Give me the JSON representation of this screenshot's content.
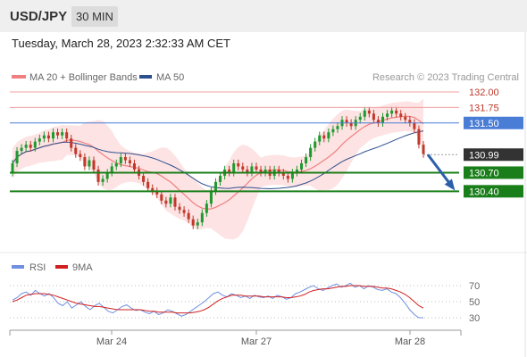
{
  "header": {
    "symbol": "USD/JPY",
    "timeframe": "30 MIN"
  },
  "timestamp": "Tuesday, March 28, 2023 2:32:33 AM CET",
  "colors": {
    "ma20": "#f08080",
    "ma50": "#2e4f8f",
    "band": "#fcdcdc",
    "bull": "#1f9a2f",
    "bear": "#c0392b",
    "support": "#1a7f1a",
    "resistance": "#f0a0a0",
    "pivot": "#4a7dd6",
    "last": "#333333",
    "rsi": "#6f8fe0",
    "rsi_ma": "#d02020",
    "arrow": "#2b5fa8"
  },
  "legend": {
    "ma20": "MA 20 + Bollinger Bands",
    "ma50": "MA 50",
    "rsi": "RSI",
    "rsi_ma": "9MA"
  },
  "watermark": "Research © 2023 Trading Central",
  "chart_data": [
    {
      "type": "candlestick",
      "title": "USD/JPY",
      "ylim": [
        129.6,
        132.1
      ],
      "x_labels": [
        "Mar 24",
        "Mar 27",
        "Mar 28"
      ],
      "levels": [
        {
          "label": "132.00",
          "value": 132.0,
          "kind": "resistance"
        },
        {
          "label": "131.75",
          "value": 131.75,
          "kind": "resistance"
        },
        {
          "label": "131.50",
          "value": 131.5,
          "kind": "pivot"
        },
        {
          "label": "130.99",
          "value": 130.99,
          "kind": "last"
        },
        {
          "label": "130.70",
          "value": 130.7,
          "kind": "support"
        },
        {
          "label": "130.40",
          "value": 130.4,
          "kind": "support"
        }
      ],
      "closes": [
        130.85,
        131.05,
        131.1,
        131.15,
        131.1,
        131.2,
        131.25,
        131.3,
        131.25,
        131.35,
        131.3,
        131.35,
        131.25,
        131.1,
        131.0,
        130.95,
        130.8,
        130.9,
        130.75,
        130.55,
        130.6,
        130.7,
        130.8,
        130.85,
        130.95,
        130.9,
        130.85,
        130.75,
        130.65,
        130.55,
        130.45,
        130.4,
        130.35,
        130.25,
        130.2,
        130.3,
        130.15,
        130.1,
        130.05,
        129.95,
        129.85,
        129.9,
        130.05,
        130.2,
        130.4,
        130.55,
        130.65,
        130.75,
        130.7,
        130.85,
        130.8,
        130.75,
        130.7,
        130.8,
        130.75,
        130.7,
        130.75,
        130.65,
        130.75,
        130.7,
        130.65,
        130.6,
        130.7,
        130.75,
        130.85,
        130.95,
        131.1,
        131.2,
        131.3,
        131.25,
        131.35,
        131.4,
        131.45,
        131.55,
        131.5,
        131.45,
        131.55,
        131.6,
        131.7,
        131.65,
        131.55,
        131.5,
        131.6,
        131.65,
        131.7,
        131.65,
        131.6,
        131.55,
        131.5,
        131.4,
        131.15,
        131.0
      ],
      "opens": [
        130.7,
        130.85,
        131.05,
        131.1,
        131.15,
        131.1,
        131.2,
        131.25,
        131.3,
        131.25,
        131.35,
        131.3,
        131.35,
        131.25,
        131.1,
        131.0,
        130.95,
        130.8,
        130.9,
        130.75,
        130.55,
        130.6,
        130.7,
        130.8,
        130.85,
        130.95,
        130.9,
        130.85,
        130.75,
        130.65,
        130.55,
        130.45,
        130.4,
        130.35,
        130.25,
        130.2,
        130.3,
        130.15,
        130.1,
        130.05,
        129.95,
        129.85,
        129.9,
        130.05,
        130.2,
        130.4,
        130.55,
        130.65,
        130.75,
        130.7,
        130.85,
        130.8,
        130.75,
        130.7,
        130.8,
        130.75,
        130.7,
        130.75,
        130.65,
        130.75,
        130.7,
        130.65,
        130.6,
        130.7,
        130.75,
        130.85,
        130.95,
        131.1,
        131.2,
        131.3,
        131.25,
        131.35,
        131.4,
        131.45,
        131.55,
        131.5,
        131.45,
        131.55,
        131.6,
        131.7,
        131.65,
        131.55,
        131.5,
        131.6,
        131.65,
        131.7,
        131.65,
        131.6,
        131.55,
        131.5,
        131.4,
        131.15
      ],
      "projection": {
        "from": 130.99,
        "to": 130.4
      },
      "series": [
        {
          "name": "MA 20 + Bollinger Bands"
        },
        {
          "name": "MA 50"
        }
      ]
    },
    {
      "type": "line",
      "title": "RSI",
      "ylim": [
        20,
        80
      ],
      "yticks": [
        "70",
        "50",
        "30"
      ],
      "series": [
        {
          "name": "RSI",
          "values": [
            52,
            55,
            60,
            62,
            58,
            64,
            60,
            57,
            60,
            55,
            48,
            45,
            50,
            42,
            46,
            50,
            44,
            40,
            45,
            48,
            43,
            38,
            36,
            40,
            44,
            46,
            42,
            39,
            40,
            37,
            35,
            38,
            34,
            36,
            40,
            38,
            35,
            32,
            34,
            38,
            42,
            46,
            50,
            55,
            60,
            62,
            58,
            56,
            60,
            58,
            55,
            57,
            54,
            58,
            56,
            55,
            57,
            54,
            58,
            56,
            53,
            55,
            60,
            62,
            65,
            68,
            70,
            66,
            64,
            67,
            70,
            72,
            68,
            70,
            73,
            68,
            70,
            66,
            70,
            68,
            65,
            64,
            66,
            62,
            60,
            55,
            48,
            40,
            34,
            30,
            30
          ]
        },
        {
          "name": "9MA",
          "values": [
            50,
            52,
            55,
            58,
            59,
            60,
            60,
            60,
            59,
            58,
            56,
            54,
            52,
            50,
            48,
            47,
            46,
            45,
            44,
            44,
            43,
            42,
            41,
            40,
            40,
            40,
            40,
            40,
            40,
            39,
            38,
            38,
            37,
            37,
            37,
            37,
            36,
            36,
            36,
            36,
            37,
            38,
            40,
            43,
            47,
            51,
            54,
            56,
            58,
            58,
            58,
            57,
            57,
            57,
            57,
            56,
            56,
            56,
            56,
            56,
            55,
            55,
            56,
            57,
            59,
            62,
            64,
            65,
            66,
            66,
            67,
            68,
            69,
            69,
            70,
            70,
            70,
            69,
            69,
            69,
            68,
            67,
            67,
            66,
            64,
            62,
            59,
            55,
            50,
            45,
            42
          ]
        }
      ]
    }
  ]
}
